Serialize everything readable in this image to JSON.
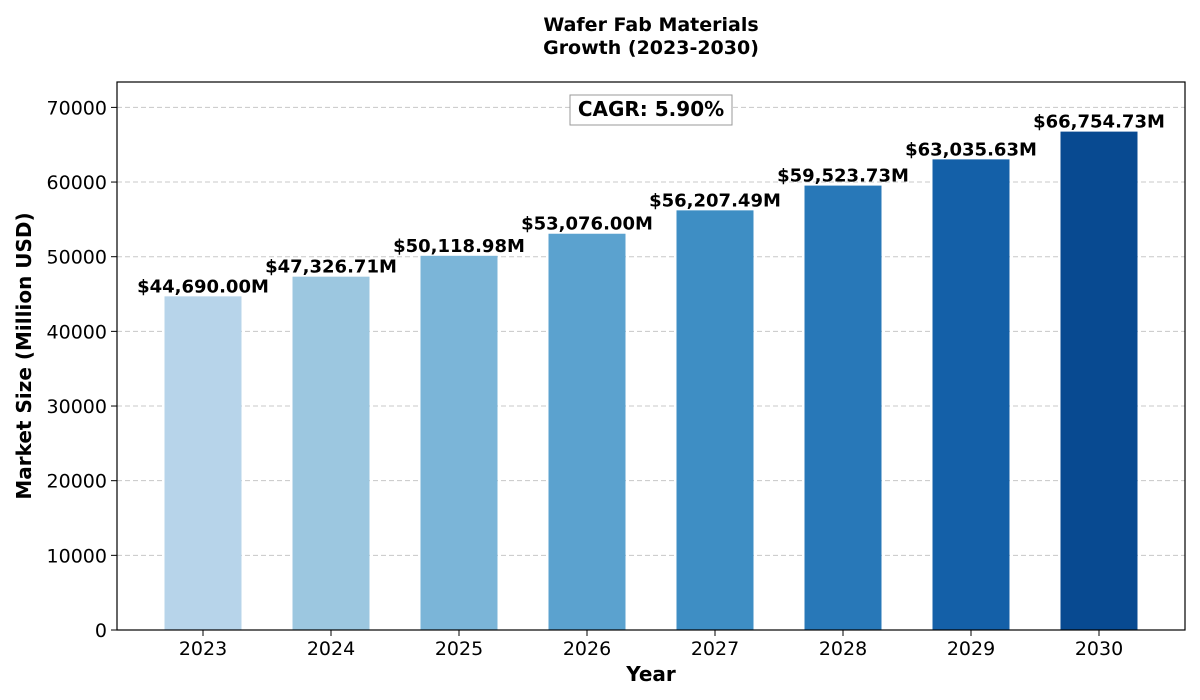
{
  "chart_data": {
    "type": "bar",
    "title_lines": [
      "Wafer Fab Materials",
      "Growth (2023-2030)"
    ],
    "xlabel": "Year",
    "ylabel": "Market Size (Million USD)",
    "categories": [
      "2023",
      "2024",
      "2025",
      "2026",
      "2027",
      "2028",
      "2029",
      "2030"
    ],
    "values": [
      44690.0,
      47326.71,
      50118.98,
      53076.0,
      56207.49,
      59523.73,
      63035.63,
      66754.73
    ],
    "value_labels": [
      "$44,690.00M",
      "$47,326.71M",
      "$50,118.98M",
      "$53,076.00M",
      "$56,207.49M",
      "$59,523.73M",
      "$63,035.63M",
      "$66,754.73M"
    ],
    "bar_colors": [
      "#b7d4ea",
      "#9cc7e0",
      "#7bb5d8",
      "#5ba2cf",
      "#3e8ec4",
      "#2878b8",
      "#1460a8",
      "#084a91"
    ],
    "ylim": [
      0,
      73400
    ],
    "yticks": [
      0,
      10000,
      20000,
      30000,
      40000,
      50000,
      60000,
      70000
    ],
    "ytick_labels": [
      "0",
      "10000",
      "20000",
      "30000",
      "40000",
      "50000",
      "60000",
      "70000"
    ],
    "grid": "horizontal dashed",
    "annotation": "CAGR: 5.90%"
  }
}
